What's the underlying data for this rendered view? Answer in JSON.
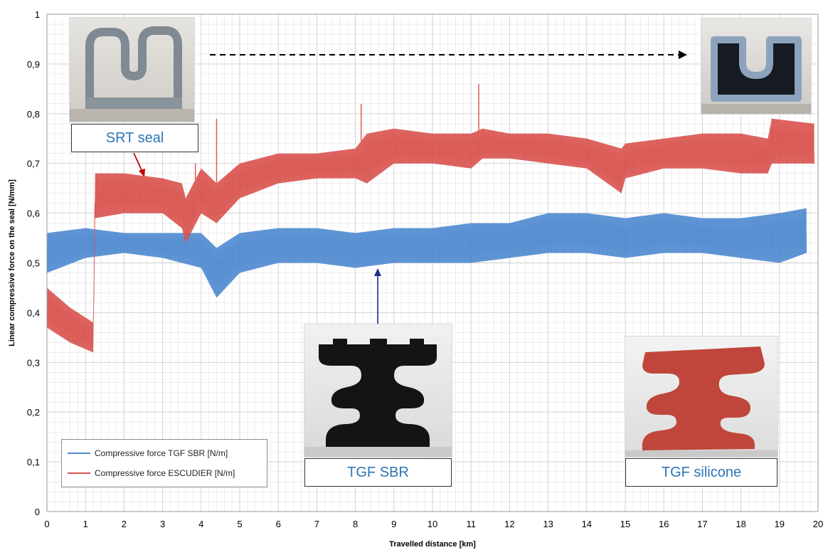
{
  "colors": {
    "tgf_sbr": "#4f8ad0",
    "escudier": "#d9534f",
    "grid": "#cfcfcf",
    "arrow_red": "#c00000",
    "arrow_blue": "#1f2f8f"
  },
  "chart_data": {
    "type": "line",
    "title": "",
    "xlabel": "Travelled distance [km]",
    "ylabel": "Linear compressive force on the seal [N/mm]",
    "xlim": [
      0,
      20
    ],
    "ylim": [
      0,
      1
    ],
    "x_ticks": [
      "0",
      "1",
      "2",
      "3",
      "4",
      "5",
      "6",
      "7",
      "8",
      "9",
      "10",
      "11",
      "12",
      "13",
      "14",
      "15",
      "16",
      "17",
      "18",
      "19",
      "20"
    ],
    "y_ticks": [
      "0",
      "0,1",
      "0,2",
      "0,3",
      "0,4",
      "0,5",
      "0,6",
      "0,7",
      "0,8",
      "0,9",
      "1"
    ],
    "grid": true,
    "legend_position": "bottom-left",
    "series": [
      {
        "name": "Compressive force TGF SBR [N/m]",
        "band": [
          {
            "x": 0.0,
            "low": 0.48,
            "high": 0.56
          },
          {
            "x": 1.0,
            "low": 0.51,
            "high": 0.57
          },
          {
            "x": 2.0,
            "low": 0.52,
            "high": 0.56
          },
          {
            "x": 3.0,
            "low": 0.51,
            "high": 0.56
          },
          {
            "x": 4.0,
            "low": 0.49,
            "high": 0.56
          },
          {
            "x": 4.4,
            "low": 0.43,
            "high": 0.53
          },
          {
            "x": 5.0,
            "low": 0.48,
            "high": 0.56
          },
          {
            "x": 6.0,
            "low": 0.5,
            "high": 0.57
          },
          {
            "x": 7.0,
            "low": 0.5,
            "high": 0.57
          },
          {
            "x": 8.0,
            "low": 0.49,
            "high": 0.56
          },
          {
            "x": 9.0,
            "low": 0.5,
            "high": 0.57
          },
          {
            "x": 10.0,
            "low": 0.5,
            "high": 0.57
          },
          {
            "x": 11.0,
            "low": 0.5,
            "high": 0.58
          },
          {
            "x": 12.0,
            "low": 0.51,
            "high": 0.58
          },
          {
            "x": 13.0,
            "low": 0.52,
            "high": 0.6
          },
          {
            "x": 14.0,
            "low": 0.52,
            "high": 0.6
          },
          {
            "x": 15.0,
            "low": 0.51,
            "high": 0.59
          },
          {
            "x": 16.0,
            "low": 0.52,
            "high": 0.6
          },
          {
            "x": 17.0,
            "low": 0.52,
            "high": 0.59
          },
          {
            "x": 18.0,
            "low": 0.51,
            "high": 0.59
          },
          {
            "x": 19.0,
            "low": 0.5,
            "high": 0.6
          },
          {
            "x": 19.7,
            "low": 0.52,
            "high": 0.61
          }
        ]
      },
      {
        "name": "Compressive force ESCUDIER [N/m]",
        "band": [
          {
            "x": 0.0,
            "low": 0.37,
            "high": 0.45
          },
          {
            "x": 0.6,
            "low": 0.34,
            "high": 0.41
          },
          {
            "x": 1.2,
            "low": 0.32,
            "high": 0.38
          },
          {
            "x": 1.25,
            "low": 0.59,
            "high": 0.68
          },
          {
            "x": 2.0,
            "low": 0.6,
            "high": 0.68
          },
          {
            "x": 3.0,
            "low": 0.6,
            "high": 0.67
          },
          {
            "x": 3.5,
            "low": 0.57,
            "high": 0.66
          },
          {
            "x": 3.6,
            "low": 0.54,
            "high": 0.63
          },
          {
            "x": 4.0,
            "low": 0.6,
            "high": 0.69
          },
          {
            "x": 4.4,
            "low": 0.58,
            "high": 0.66
          },
          {
            "x": 5.0,
            "low": 0.63,
            "high": 0.7
          },
          {
            "x": 6.0,
            "low": 0.66,
            "high": 0.72
          },
          {
            "x": 7.0,
            "low": 0.67,
            "high": 0.72
          },
          {
            "x": 8.0,
            "low": 0.67,
            "high": 0.73
          },
          {
            "x": 8.3,
            "low": 0.66,
            "high": 0.76
          },
          {
            "x": 9.0,
            "low": 0.7,
            "high": 0.77
          },
          {
            "x": 10.0,
            "low": 0.7,
            "high": 0.76
          },
          {
            "x": 11.0,
            "low": 0.69,
            "high": 0.76
          },
          {
            "x": 11.3,
            "low": 0.71,
            "high": 0.77
          },
          {
            "x": 12.0,
            "low": 0.71,
            "high": 0.76
          },
          {
            "x": 13.0,
            "low": 0.7,
            "high": 0.76
          },
          {
            "x": 14.0,
            "low": 0.69,
            "high": 0.75
          },
          {
            "x": 14.9,
            "low": 0.64,
            "high": 0.73
          },
          {
            "x": 15.0,
            "low": 0.67,
            "high": 0.74
          },
          {
            "x": 16.0,
            "low": 0.69,
            "high": 0.75
          },
          {
            "x": 17.0,
            "low": 0.69,
            "high": 0.76
          },
          {
            "x": 18.0,
            "low": 0.68,
            "high": 0.76
          },
          {
            "x": 18.7,
            "low": 0.68,
            "high": 0.75
          },
          {
            "x": 18.8,
            "low": 0.7,
            "high": 0.79
          },
          {
            "x": 19.9,
            "low": 0.7,
            "high": 0.78
          }
        ],
        "spikes": [
          {
            "x": 3.85,
            "y": 0.7
          },
          {
            "x": 4.4,
            "y": 0.79
          },
          {
            "x": 8.15,
            "y": 0.82
          },
          {
            "x": 11.2,
            "y": 0.86
          }
        ]
      }
    ],
    "annotations": [
      "SRT seal",
      "TGF SBR",
      "TGF silicone"
    ]
  }
}
